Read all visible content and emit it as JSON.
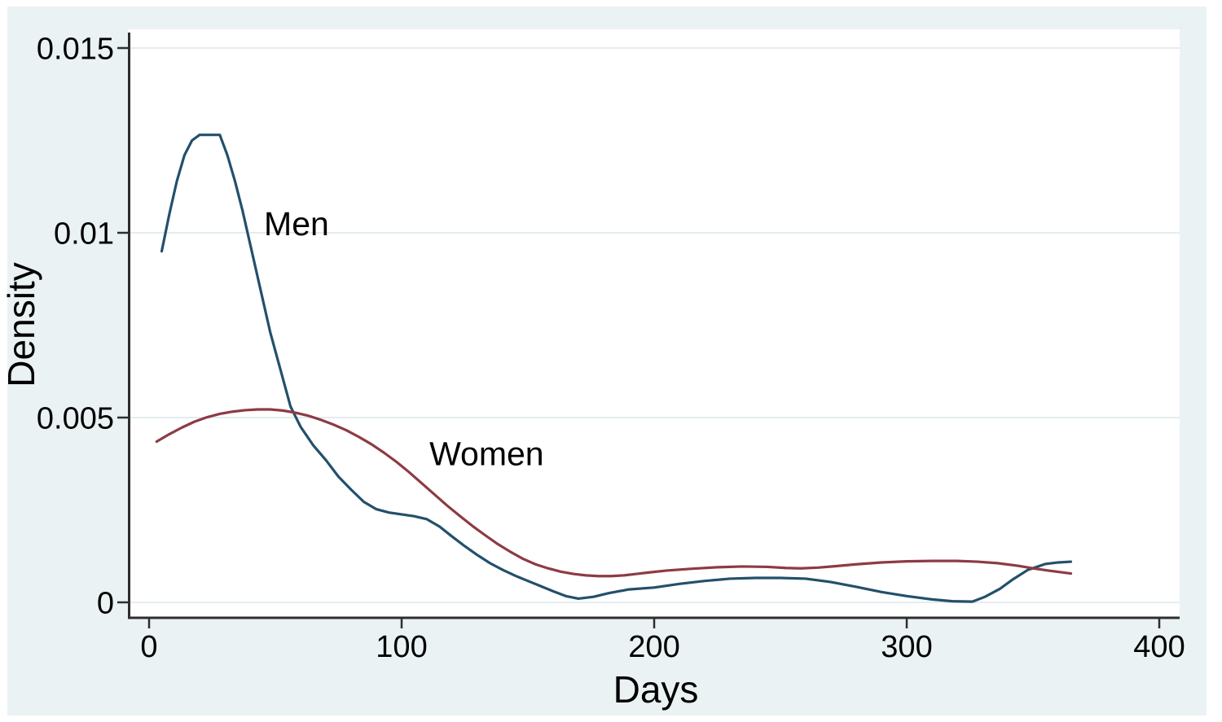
{
  "chart_data": {
    "type": "line",
    "title": "",
    "xlabel": "Days",
    "ylabel": "Density",
    "xlim": [
      0,
      400
    ],
    "ylim": [
      0,
      0.015
    ],
    "grid": "horizontal",
    "legend_position": "inline-annotations",
    "xticks": [
      {
        "value": 0,
        "label": "0"
      },
      {
        "value": 100,
        "label": "100"
      },
      {
        "value": 200,
        "label": "200"
      },
      {
        "value": 300,
        "label": "300"
      },
      {
        "value": 400,
        "label": "400"
      }
    ],
    "yticks": [
      {
        "value": 0,
        "label": "0"
      },
      {
        "value": 0.005,
        "label": "0.005"
      },
      {
        "value": 0.01,
        "label": "0.01"
      },
      {
        "value": 0.015,
        "label": "0.015"
      }
    ],
    "series": [
      {
        "name": "Men",
        "color": "#23506b",
        "points": [
          [
            5,
            0.0095
          ],
          [
            8,
            0.0105
          ],
          [
            11,
            0.0114
          ],
          [
            14,
            0.0121
          ],
          [
            17,
            0.0125
          ],
          [
            20,
            0.01265
          ],
          [
            28,
            0.01265
          ],
          [
            31,
            0.0121
          ],
          [
            34,
            0.0114
          ],
          [
            37,
            0.0106
          ],
          [
            40,
            0.0097
          ],
          [
            44,
            0.0085
          ],
          [
            48,
            0.0073
          ],
          [
            52,
            0.0063
          ],
          [
            56,
            0.0053
          ],
          [
            60,
            0.00475
          ],
          [
            65,
            0.00425
          ],
          [
            70,
            0.00385
          ],
          [
            75,
            0.0034
          ],
          [
            80,
            0.00305
          ],
          [
            85,
            0.00272
          ],
          [
            90,
            0.00252
          ],
          [
            95,
            0.00243
          ],
          [
            100,
            0.00238
          ],
          [
            105,
            0.00233
          ],
          [
            110,
            0.00225
          ],
          [
            115,
            0.00205
          ],
          [
            120,
            0.00178
          ],
          [
            125,
            0.00152
          ],
          [
            130,
            0.00128
          ],
          [
            135,
            0.00106
          ],
          [
            140,
            0.00088
          ],
          [
            145,
            0.00072
          ],
          [
            150,
            0.00058
          ],
          [
            155,
            0.00044
          ],
          [
            160,
            0.0003
          ],
          [
            165,
            0.00017
          ],
          [
            170,
            0.0001
          ],
          [
            176,
            0.00015
          ],
          [
            182,
            0.00025
          ],
          [
            190,
            0.00035
          ],
          [
            200,
            0.0004
          ],
          [
            210,
            0.0005
          ],
          [
            220,
            0.00058
          ],
          [
            230,
            0.00064
          ],
          [
            240,
            0.00066
          ],
          [
            250,
            0.00066
          ],
          [
            260,
            0.00064
          ],
          [
            270,
            0.00055
          ],
          [
            280,
            0.00042
          ],
          [
            290,
            0.00028
          ],
          [
            300,
            0.00017
          ],
          [
            310,
            8e-05
          ],
          [
            318,
            3e-05
          ],
          [
            326,
            2e-05
          ],
          [
            331,
            0.00015
          ],
          [
            337,
            0.00037
          ],
          [
            342,
            0.00062
          ],
          [
            348,
            0.00088
          ],
          [
            355,
            0.00104
          ],
          [
            360,
            0.00108
          ],
          [
            365,
            0.0011
          ]
        ]
      },
      {
        "name": "Women",
        "color": "#8d3b44",
        "points": [
          [
            3,
            0.00435
          ],
          [
            8,
            0.00455
          ],
          [
            13,
            0.00473
          ],
          [
            18,
            0.00489
          ],
          [
            23,
            0.00501
          ],
          [
            28,
            0.0051
          ],
          [
            33,
            0.00516
          ],
          [
            38,
            0.0052
          ],
          [
            43,
            0.00522
          ],
          [
            48,
            0.00522
          ],
          [
            53,
            0.00519
          ],
          [
            58,
            0.00513
          ],
          [
            63,
            0.00505
          ],
          [
            68,
            0.00494
          ],
          [
            73,
            0.00481
          ],
          [
            78,
            0.00466
          ],
          [
            83,
            0.00448
          ],
          [
            88,
            0.00428
          ],
          [
            93,
            0.00405
          ],
          [
            98,
            0.0038
          ],
          [
            103,
            0.00352
          ],
          [
            108,
            0.00322
          ],
          [
            113,
            0.00292
          ],
          [
            118,
            0.00262
          ],
          [
            123,
            0.00234
          ],
          [
            128,
            0.00207
          ],
          [
            133,
            0.00182
          ],
          [
            138,
            0.00158
          ],
          [
            143,
            0.00137
          ],
          [
            148,
            0.00118
          ],
          [
            153,
            0.00103
          ],
          [
            158,
            0.00092
          ],
          [
            163,
            0.00083
          ],
          [
            168,
            0.00077
          ],
          [
            173,
            0.00073
          ],
          [
            178,
            0.00071
          ],
          [
            183,
            0.00071
          ],
          [
            188,
            0.00073
          ],
          [
            193,
            0.00077
          ],
          [
            198,
            0.00081
          ],
          [
            205,
            0.00086
          ],
          [
            215,
            0.00091
          ],
          [
            225,
            0.00095
          ],
          [
            235,
            0.00097
          ],
          [
            245,
            0.00096
          ],
          [
            252,
            0.00093
          ],
          [
            258,
            0.00092
          ],
          [
            265,
            0.00094
          ],
          [
            272,
            0.00098
          ],
          [
            280,
            0.00103
          ],
          [
            290,
            0.00108
          ],
          [
            300,
            0.00111
          ],
          [
            310,
            0.00112
          ],
          [
            320,
            0.00112
          ],
          [
            328,
            0.0011
          ],
          [
            336,
            0.00106
          ],
          [
            344,
            0.00099
          ],
          [
            350,
            0.00092
          ],
          [
            356,
            0.00086
          ],
          [
            365,
            0.00078
          ]
        ]
      }
    ],
    "annotations": [
      {
        "text": "Men",
        "x": 45.5,
        "y": 0.01025,
        "anchor": "start"
      },
      {
        "text": "Women",
        "x": 111,
        "y": 0.00403,
        "anchor": "start"
      }
    ]
  },
  "colors": {
    "page_bg": "#ffffff",
    "frame_bg": "#eaf2f3",
    "plot_bg": "#ffffff",
    "grid": "#e3edef",
    "axis": "#2e2e2e",
    "text": "#000000"
  }
}
